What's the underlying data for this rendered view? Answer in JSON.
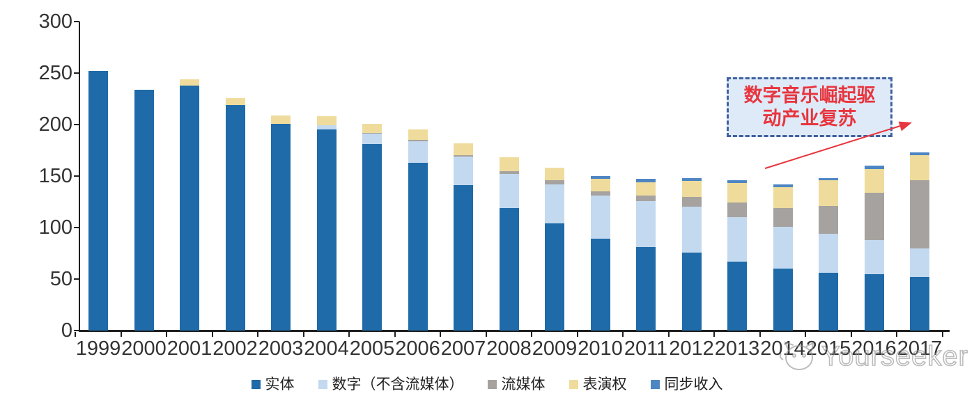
{
  "chart_data": {
    "type": "bar",
    "stacked": true,
    "title": "",
    "xlabel": "",
    "ylabel": "",
    "categories": [
      "1999",
      "2000",
      "2001",
      "2002",
      "2003",
      "2004",
      "2005",
      "2006",
      "2007",
      "2008",
      "2009",
      "2010",
      "2011",
      "2012",
      "2013",
      "2014",
      "2015",
      "2016",
      "2017"
    ],
    "series": [
      {
        "name": "实体",
        "color": "#1f6ba9",
        "values": [
          252,
          234,
          238,
          219,
          201,
          195,
          181,
          163,
          141,
          119,
          104,
          89,
          81,
          76,
          67,
          60,
          56,
          55,
          52
        ]
      },
      {
        "name": "数字（不含流媒体）",
        "color": "#c3d9ef",
        "values": [
          0,
          0,
          0,
          0,
          0,
          4,
          10,
          21,
          28,
          33,
          38,
          42,
          45,
          44,
          43,
          41,
          38,
          33,
          28
        ]
      },
      {
        "name": "流媒体",
        "color": "#a6a29f",
        "values": [
          0,
          0,
          0,
          0,
          0,
          0,
          1,
          1,
          1,
          3,
          4,
          4,
          5,
          10,
          14,
          18,
          27,
          46,
          66
        ]
      },
      {
        "name": "表演权",
        "color": "#efdc9c",
        "values": [
          0,
          0,
          6,
          7,
          8,
          9,
          9,
          10,
          12,
          13,
          12,
          12,
          13,
          15,
          19,
          20,
          25,
          23,
          24
        ]
      },
      {
        "name": "同步收入",
        "color": "#4e86c3",
        "values": [
          0,
          0,
          0,
          0,
          0,
          0,
          0,
          0,
          0,
          0,
          0,
          3,
          3,
          3,
          3,
          3,
          2,
          3,
          3
        ]
      }
    ],
    "ylim": [
      0,
      300
    ],
    "yticks": [
      0,
      50,
      100,
      150,
      200,
      250,
      300
    ],
    "legend_position": "bottom",
    "grid": false
  },
  "annotation": {
    "line1": "数字音乐崛起驱",
    "line2": "动产业复苏",
    "fill_color": "#deeaf8",
    "border_color": "#41619e",
    "text_color": "#e8353e",
    "arrow_color": "#e8353e"
  },
  "watermark": {
    "text": "Yourseeker"
  }
}
